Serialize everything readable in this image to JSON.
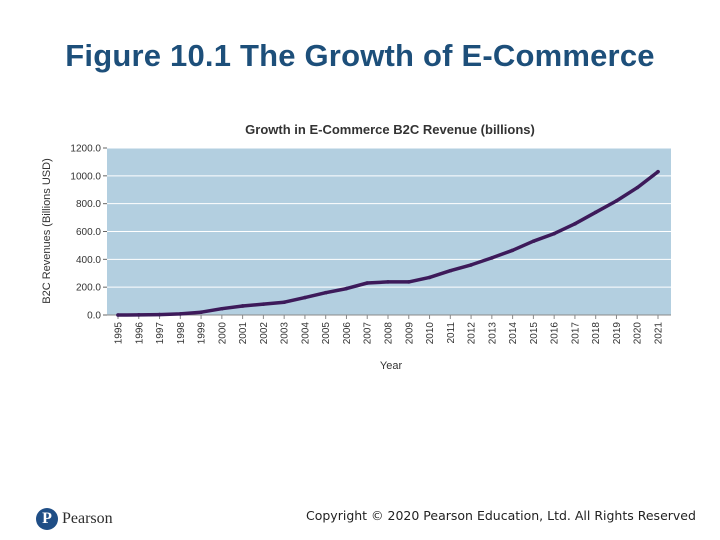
{
  "slide": {
    "title": "Figure 10.1 The Growth of E-Commerce",
    "copyright": "Copyright © 2020 Pearson Education, Ltd. All Rights Reserved",
    "logo_text": "Pearson",
    "logo_mark": "P"
  },
  "colors": {
    "title": "#1d4f7a",
    "plot_bg": "#b3cfe0",
    "line": "#3d1a5a",
    "grid": "#ffffff"
  },
  "chart_data": {
    "type": "line",
    "title": "Growth in E-Commerce B2C  Revenue (billions)",
    "xlabel": "Year",
    "ylabel": "B2C Revenues (Billions USD)",
    "ylim": [
      0,
      1200
    ],
    "yticks": [
      0,
      200,
      400,
      600,
      800,
      1000,
      1200
    ],
    "ytick_labels": [
      "0.0",
      "200.0",
      "400.0",
      "600.0",
      "800.0",
      "1000.0",
      "1200.0"
    ],
    "grid": true,
    "categories": [
      "1995",
      "1996",
      "1997",
      "1998",
      "1999",
      "2000",
      "2001",
      "2002",
      "2003",
      "2004",
      "2005",
      "2006",
      "2007",
      "2008",
      "2009",
      "2010",
      "2011",
      "2012",
      "2013",
      "2014",
      "2015",
      "2016",
      "2017",
      "2018",
      "2019",
      "2020",
      "2021"
    ],
    "series": [
      {
        "name": "B2C Revenue",
        "values": [
          0,
          1,
          3,
          8,
          20,
          45,
          65,
          78,
          92,
          125,
          160,
          190,
          230,
          238,
          238,
          270,
          318,
          360,
          410,
          465,
          530,
          585,
          655,
          738,
          820,
          915,
          1030
        ]
      }
    ]
  }
}
